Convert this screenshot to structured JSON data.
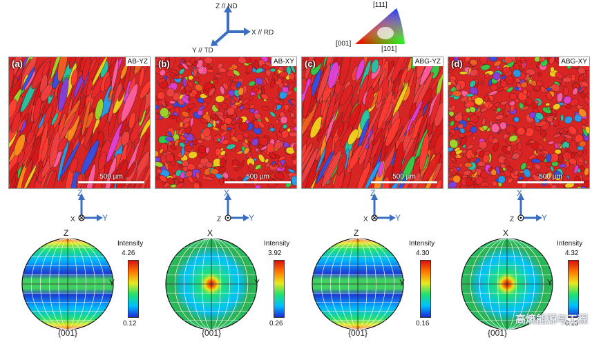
{
  "sample_axes": {
    "z": "Z // ND",
    "x": "X // RD",
    "y": "Y // TD"
  },
  "ipf_key": {
    "top": "[111]",
    "left": "[001]",
    "right": "[101]"
  },
  "panels": [
    {
      "tag": "(a)",
      "label": "AB-YZ",
      "scale": "500 µm",
      "view_axes": {
        "up": "Z",
        "right": "Y",
        "out": "X"
      },
      "pf_top": "Z",
      "pf_right": "Y",
      "pf_bottom": "{001}",
      "intensity_max": "4.26",
      "intensity_min": "0.12",
      "texture": "fiber"
    },
    {
      "tag": "(b)",
      "label": "AB-XY",
      "scale": "500 µm",
      "view_axes": {
        "up": "X",
        "right": "Y",
        "out": "Z"
      },
      "pf_top": "X",
      "pf_right": "Y",
      "pf_bottom": "{001}",
      "intensity_max": "3.92",
      "intensity_min": "0.26",
      "texture": "center"
    },
    {
      "tag": "(c)",
      "label": "ABG-YZ",
      "scale": "500 µm",
      "view_axes": {
        "up": "Z",
        "right": "Y",
        "out": "X"
      },
      "pf_top": "Z",
      "pf_right": "Y",
      "pf_bottom": "{001}",
      "intensity_max": "4.30",
      "intensity_min": "0.16",
      "texture": "fiber"
    },
    {
      "tag": "(d)",
      "label": "ABG-XY",
      "scale": "500 µm",
      "view_axes": {
        "up": "X",
        "right": "Y",
        "out": "Z"
      },
      "pf_top": "X",
      "pf_right": "Y",
      "pf_bottom": "{001}",
      "intensity_max": "4.32",
      "intensity_min": "0.15",
      "texture": "center"
    }
  ],
  "intensity_title": "Intensity",
  "watermark": "高熵能源与工程",
  "colors": {
    "axis_blue": "#3a6fc2"
  }
}
